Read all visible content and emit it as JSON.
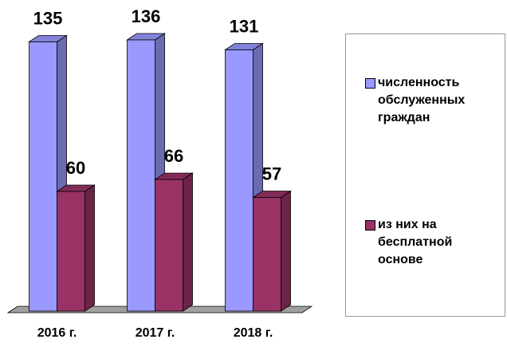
{
  "chart_data": {
    "type": "bar3d",
    "categories": [
      "2016 г.",
      "2017 г.",
      "2018 г."
    ],
    "series": [
      {
        "name": "численность обслуженных граждан",
        "color": "#9999ff",
        "values": [
          135,
          136,
          131
        ]
      },
      {
        "name": "из них на бесплатной основе",
        "color": "#993366",
        "values": [
          60,
          66,
          57
        ]
      }
    ],
    "ylim": [
      0,
      150
    ],
    "legend": "right"
  }
}
